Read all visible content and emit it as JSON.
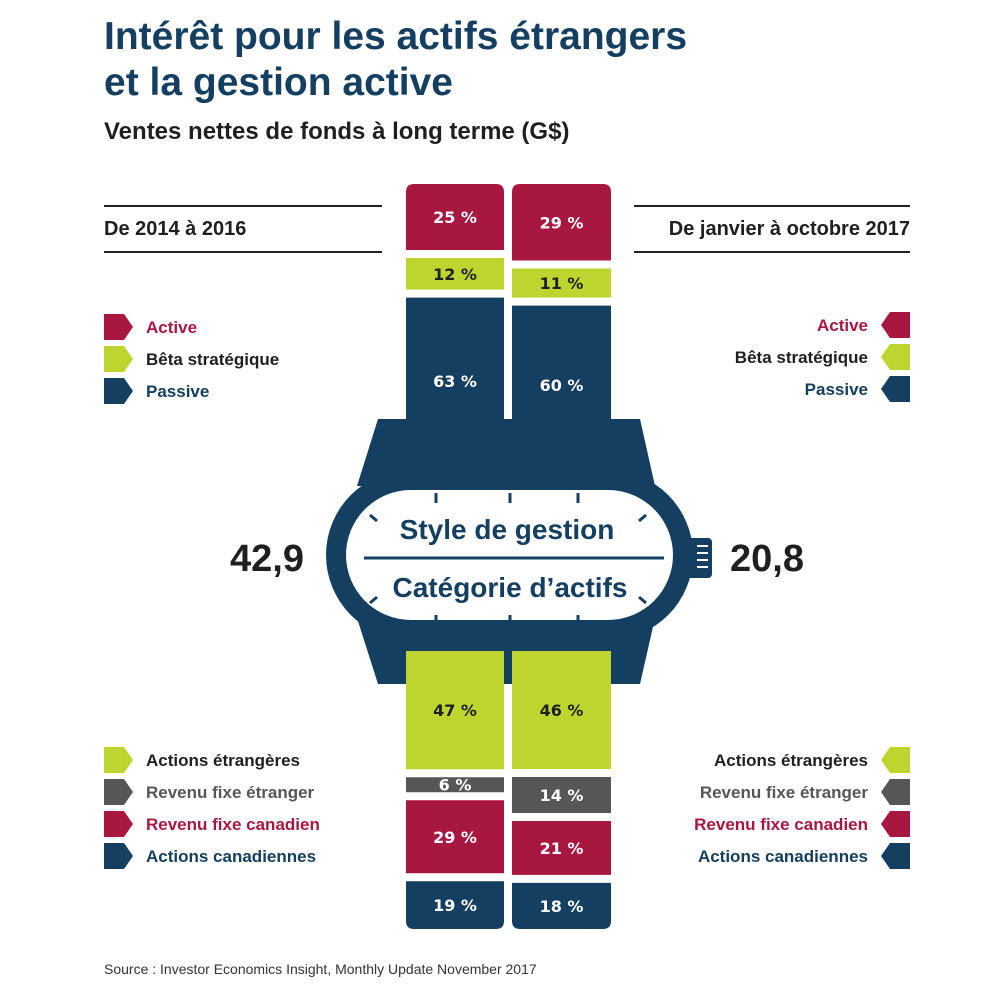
{
  "title_line1": "Intérêt pour les actifs étrangers",
  "title_line2": "et la gestion active",
  "subtitle": "Ventes nettes de fonds à long terme (G$)",
  "period_left": "De 2014 à 2016",
  "period_right": "De janvier à octobre 2017",
  "total_left": "42,9",
  "total_right": "20,8",
  "dial_top": "Style de gestion",
  "dial_bottom": "Catégorie d’actifs",
  "source": "Source : Investor Economics Insight, Monthly Update November 2017",
  "colors": {
    "active": "#a8173f",
    "smart_beta": "#bed530",
    "passive": "#143f60",
    "foreign_fixed": "#555658",
    "watch": "#143f60"
  },
  "legend_style": [
    {
      "label": "Active",
      "color": "#a8173f",
      "icon": "arrow-tab-icon"
    },
    {
      "label": "Bêta stratégique",
      "color": "#bed530",
      "text_color": "#1f1f1f",
      "icon": "arrow-tab-icon"
    },
    {
      "label": "Passive",
      "color": "#143f60",
      "icon": "arrow-tab-icon"
    }
  ],
  "legend_asset": [
    {
      "label": "Actions étrangères",
      "color": "#bed530",
      "text_color": "#1f1f1f",
      "icon": "arrow-tab-icon"
    },
    {
      "label": "Revenu fixe étranger",
      "color": "#555658",
      "icon": "arrow-tab-icon"
    },
    {
      "label": "Revenu fixe canadien",
      "color": "#a8173f",
      "icon": "arrow-tab-icon"
    },
    {
      "label": "Actions canadiennes",
      "color": "#143f60",
      "icon": "arrow-tab-icon"
    }
  ],
  "chart_data": [
    {
      "type": "bar",
      "stacked": true,
      "group": "Style de gestion",
      "categories": [
        "De 2014 à 2016",
        "De janvier à octobre 2017"
      ],
      "unit": "%",
      "series": [
        {
          "name": "Active",
          "values": [
            25,
            29
          ],
          "labels": [
            "25 %",
            "29 %"
          ]
        },
        {
          "name": "Bêta stratégique",
          "values": [
            12,
            11
          ],
          "labels": [
            "12 %",
            "11 %"
          ]
        },
        {
          "name": "Passive",
          "values": [
            63,
            60
          ],
          "labels": [
            "63 %",
            "60 %"
          ]
        }
      ]
    },
    {
      "type": "bar",
      "stacked": true,
      "group": "Catégorie d’actifs",
      "categories": [
        "De 2014 à 2016",
        "De janvier à octobre 2017"
      ],
      "unit": "%",
      "series": [
        {
          "name": "Actions étrangères",
          "values": [
            47,
            46
          ],
          "labels": [
            "47 %",
            "46 %"
          ]
        },
        {
          "name": "Revenu fixe étranger",
          "values": [
            6,
            14
          ],
          "labels": [
            "6 %",
            "14 %"
          ]
        },
        {
          "name": "Revenu fixe canadien",
          "values": [
            29,
            21
          ],
          "labels": [
            "29 %",
            "21 %"
          ]
        },
        {
          "name": "Actions canadiennes",
          "values": [
            19,
            18
          ],
          "labels": [
            "19 %",
            "18 %"
          ]
        }
      ]
    }
  ]
}
